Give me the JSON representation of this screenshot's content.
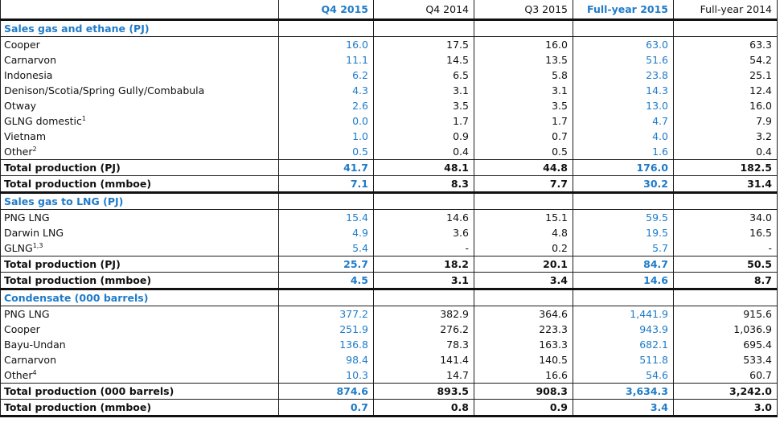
{
  "headers": [
    "",
    "Q4 2015",
    "Q4 2014",
    "Q3 2015",
    "Full-year 2015",
    "Full-year 2014"
  ],
  "sections": [
    {
      "title": "Sales gas and ethane (PJ)",
      "rows": [
        {
          "label": "Cooper",
          "sup": "",
          "values": [
            "16.0",
            "17.5",
            "16.0",
            "63.0",
            "63.3"
          ]
        },
        {
          "label": "Carnarvon",
          "sup": "",
          "values": [
            "11.1",
            "14.5",
            "13.5",
            "51.6",
            "54.2"
          ]
        },
        {
          "label": "Indonesia",
          "sup": "",
          "values": [
            "6.2",
            "6.5",
            "5.8",
            "23.8",
            "25.1"
          ]
        },
        {
          "label": "Denison/Scotia/Spring Gully/Combabula",
          "sup": "",
          "values": [
            "4.3",
            "3.1",
            "3.1",
            "14.3",
            "12.4"
          ]
        },
        {
          "label": "Otway",
          "sup": "",
          "values": [
            "2.6",
            "3.5",
            "3.5",
            "13.0",
            "16.0"
          ]
        },
        {
          "label": "GLNG domestic",
          "sup": "1",
          "values": [
            "0.0",
            "1.7",
            "1.7",
            "4.7",
            "7.9"
          ]
        },
        {
          "label": "Vietnam",
          "sup": "",
          "values": [
            "1.0",
            "0.9",
            "0.7",
            "4.0",
            "3.2"
          ]
        },
        {
          "label": "Other",
          "sup": "2",
          "values": [
            "0.5",
            "0.4",
            "0.5",
            "1.6",
            "0.4"
          ]
        }
      ],
      "totals": [
        {
          "label": "Total production (PJ)",
          "values": [
            "41.7",
            "48.1",
            "44.8",
            "176.0",
            "182.5"
          ]
        },
        {
          "label": "Total production (mmboe)",
          "values": [
            "7.1",
            "8.3",
            "7.7",
            "30.2",
            "31.4"
          ]
        }
      ]
    },
    {
      "title": "Sales gas to LNG (PJ)",
      "rows": [
        {
          "label": "PNG LNG",
          "sup": "",
          "values": [
            "15.4",
            "14.6",
            "15.1",
            "59.5",
            "34.0"
          ]
        },
        {
          "label": "Darwin LNG",
          "sup": "",
          "values": [
            "4.9",
            "3.6",
            "4.8",
            "19.5",
            "16.5"
          ]
        },
        {
          "label": "GLNG",
          "sup": "1,3",
          "values": [
            "5.4",
            "-",
            "0.2",
            "5.7",
            "-"
          ]
        }
      ],
      "totals": [
        {
          "label": "Total production (PJ)",
          "values": [
            "25.7",
            "18.2",
            "20.1",
            "84.7",
            "50.5"
          ]
        },
        {
          "label": "Total production (mmboe)",
          "values": [
            "4.5",
            "3.1",
            "3.4",
            "14.6",
            "8.7"
          ]
        }
      ]
    },
    {
      "title": "Condensate (000 barrels)",
      "rows": [
        {
          "label": "PNG LNG",
          "sup": "",
          "values": [
            "377.2",
            "382.9",
            "364.6",
            "1,441.9",
            "915.6"
          ]
        },
        {
          "label": "Cooper",
          "sup": "",
          "values": [
            "251.9",
            "276.2",
            "223.3",
            "943.9",
            "1,036.9"
          ]
        },
        {
          "label": "Bayu-Undan",
          "sup": "",
          "values": [
            "136.8",
            "78.3",
            "163.3",
            "682.1",
            "695.4"
          ]
        },
        {
          "label": "Carnarvon",
          "sup": "",
          "values": [
            "98.4",
            "141.4",
            "140.5",
            "511.8",
            "533.4"
          ]
        },
        {
          "label": "Other",
          "sup": "4",
          "values": [
            "10.3",
            "14.7",
            "16.6",
            "54.6",
            "60.7"
          ]
        }
      ],
      "totals": [
        {
          "label": "Total production (000 barrels)",
          "values": [
            "874.6",
            "893.5",
            "908.3",
            "3,634.3",
            "3,242.0"
          ]
        },
        {
          "label": "Total production (mmboe)",
          "values": [
            "0.7",
            "0.8",
            "0.9",
            "3.4",
            "3.0"
          ]
        }
      ]
    }
  ],
  "colors": {
    "accent": "#1f7bc8",
    "text": "#111111",
    "rule": "#111111"
  }
}
